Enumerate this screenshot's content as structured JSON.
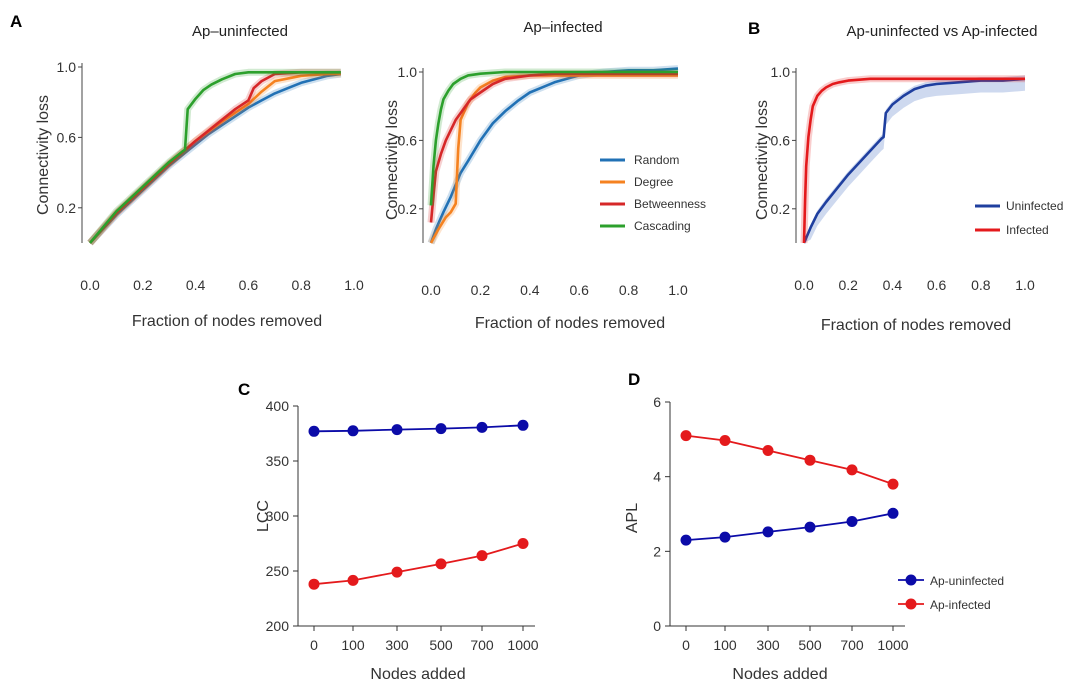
{
  "colors": {
    "random": "#2171b5",
    "degree": "#f58220",
    "betweenness": "#d62728",
    "cascading": "#2ca02c",
    "uninfected": "#1f3f9f",
    "infected": "#e41a1c",
    "band": "#c6d2ec",
    "navy": "#0b0ba8",
    "red": "#e41a1c"
  },
  "panel_labels": {
    "a": "A",
    "b": "B",
    "c": "C",
    "d": "D"
  },
  "chart_data": [
    {
      "id": "A1",
      "type": "line",
      "title": "Ap–uninfected",
      "xlabel": "Fraction of nodes removed",
      "ylabel": "Connectivity loss",
      "xlim": [
        0,
        1.0
      ],
      "ylim": [
        0,
        1.0
      ],
      "xticks": [
        "0.0",
        "0.2",
        "0.4",
        "0.6",
        "0.8",
        "1.0"
      ],
      "yticks": [
        "0.2",
        "0.6",
        "1.0"
      ],
      "series": [
        {
          "key": "random",
          "x": [
            0,
            0.05,
            0.1,
            0.15,
            0.2,
            0.25,
            0.3,
            0.35,
            0.4,
            0.45,
            0.5,
            0.55,
            0.6,
            0.65,
            0.7,
            0.75,
            0.8,
            0.85,
            0.9,
            0.95
          ],
          "y": [
            0,
            0.08,
            0.16,
            0.23,
            0.3,
            0.37,
            0.44,
            0.5,
            0.56,
            0.62,
            0.67,
            0.72,
            0.77,
            0.81,
            0.85,
            0.88,
            0.91,
            0.93,
            0.95,
            0.96
          ]
        },
        {
          "key": "degree",
          "x": [
            0,
            0.1,
            0.2,
            0.3,
            0.4,
            0.5,
            0.6,
            0.65,
            0.7,
            0.8,
            0.9,
            0.95
          ],
          "y": [
            0,
            0.17,
            0.31,
            0.45,
            0.58,
            0.69,
            0.79,
            0.86,
            0.92,
            0.95,
            0.96,
            0.96
          ]
        },
        {
          "key": "betweenness",
          "x": [
            0,
            0.1,
            0.2,
            0.3,
            0.4,
            0.5,
            0.55,
            0.6,
            0.62,
            0.65,
            0.7,
            0.8,
            0.9,
            0.95
          ],
          "y": [
            0,
            0.17,
            0.31,
            0.45,
            0.58,
            0.7,
            0.76,
            0.81,
            0.88,
            0.92,
            0.96,
            0.97,
            0.97,
            0.97
          ]
        },
        {
          "key": "cascading",
          "x": [
            0,
            0.1,
            0.2,
            0.3,
            0.35,
            0.36,
            0.37,
            0.4,
            0.43,
            0.46,
            0.5,
            0.55,
            0.6,
            0.7,
            0.8,
            0.95
          ],
          "y": [
            0,
            0.18,
            0.32,
            0.46,
            0.52,
            0.53,
            0.76,
            0.82,
            0.87,
            0.9,
            0.93,
            0.96,
            0.97,
            0.97,
            0.97,
            0.97
          ]
        }
      ]
    },
    {
      "id": "A2",
      "type": "line",
      "title": "Ap–infected",
      "xlabel": "Fraction of nodes removed",
      "ylabel": "Connectivity loss",
      "xlim": [
        0,
        1.0
      ],
      "ylim": [
        0,
        1.0
      ],
      "xticks": [
        "0.0",
        "0.2",
        "0.4",
        "0.6",
        "0.8",
        "1.0"
      ],
      "yticks": [
        "0.2",
        "0.6",
        "1.0"
      ],
      "legend": {
        "position": "right",
        "entries": [
          "Random",
          "Degree",
          "Betweenness",
          "Cascading"
        ]
      },
      "series": [
        {
          "key": "random",
          "name": "Random",
          "x": [
            0,
            0.02,
            0.05,
            0.08,
            0.1,
            0.12,
            0.15,
            0.2,
            0.25,
            0.3,
            0.35,
            0.4,
            0.45,
            0.5,
            0.55,
            0.6,
            0.7,
            0.8,
            0.9,
            1.0
          ],
          "y": [
            0,
            0.08,
            0.18,
            0.27,
            0.34,
            0.41,
            0.48,
            0.6,
            0.7,
            0.77,
            0.83,
            0.88,
            0.91,
            0.94,
            0.96,
            0.98,
            1.0,
            1.01,
            1.01,
            1.02
          ]
        },
        {
          "key": "degree",
          "name": "Degree",
          "x": [
            0,
            0.03,
            0.06,
            0.08,
            0.1,
            0.11,
            0.12,
            0.15,
            0.18,
            0.2,
            0.25,
            0.3,
            0.4,
            0.6,
            0.8,
            1.0
          ],
          "y": [
            0,
            0.08,
            0.15,
            0.18,
            0.23,
            0.55,
            0.72,
            0.82,
            0.88,
            0.91,
            0.95,
            0.97,
            0.98,
            0.98,
            0.98,
            0.98
          ]
        },
        {
          "key": "betweenness",
          "name": "Betweenness",
          "x": [
            0,
            0.01,
            0.02,
            0.04,
            0.06,
            0.08,
            0.1,
            0.13,
            0.16,
            0.2,
            0.25,
            0.3,
            0.4,
            0.5,
            0.7,
            1.0
          ],
          "y": [
            0.12,
            0.28,
            0.42,
            0.52,
            0.6,
            0.66,
            0.72,
            0.78,
            0.84,
            0.88,
            0.93,
            0.96,
            0.98,
            0.99,
            0.99,
            0.99
          ]
        },
        {
          "key": "cascading",
          "name": "Cascading",
          "x": [
            0,
            0.01,
            0.02,
            0.03,
            0.04,
            0.05,
            0.07,
            0.09,
            0.12,
            0.15,
            0.2,
            0.3,
            0.5,
            1.0
          ],
          "y": [
            0.22,
            0.45,
            0.6,
            0.7,
            0.78,
            0.84,
            0.89,
            0.93,
            0.96,
            0.98,
            0.99,
            1.0,
            1.0,
            1.0
          ]
        }
      ]
    },
    {
      "id": "B",
      "type": "line",
      "title": "Ap-uninfected vs Ap-infected",
      "xlabel": "Fraction of nodes removed",
      "ylabel": "Connectivity loss",
      "xlim": [
        0,
        1.0
      ],
      "ylim": [
        0,
        1.0
      ],
      "xticks": [
        "0.0",
        "0.2",
        "0.4",
        "0.6",
        "0.8",
        "1.0"
      ],
      "yticks": [
        "0.2",
        "0.6",
        "1.0"
      ],
      "legend": {
        "position": "bottom-right",
        "entries": [
          "Uninfected",
          "Infected"
        ]
      },
      "series": [
        {
          "key": "uninfected",
          "name": "Uninfected",
          "x": [
            0,
            0.03,
            0.06,
            0.1,
            0.15,
            0.2,
            0.25,
            0.3,
            0.35,
            0.36,
            0.37,
            0.4,
            0.45,
            0.5,
            0.55,
            0.6,
            0.7,
            0.8,
            0.9,
            1.0
          ],
          "y": [
            0,
            0.09,
            0.17,
            0.24,
            0.32,
            0.4,
            0.47,
            0.54,
            0.61,
            0.62,
            0.76,
            0.81,
            0.86,
            0.9,
            0.92,
            0.93,
            0.94,
            0.95,
            0.95,
            0.96
          ]
        },
        {
          "key": "infected",
          "name": "Infected",
          "x": [
            0,
            0.005,
            0.01,
            0.02,
            0.03,
            0.04,
            0.06,
            0.08,
            0.1,
            0.13,
            0.16,
            0.2,
            0.3,
            0.5,
            0.7,
            1.0
          ],
          "y": [
            0,
            0.25,
            0.45,
            0.62,
            0.72,
            0.8,
            0.86,
            0.89,
            0.91,
            0.93,
            0.94,
            0.95,
            0.96,
            0.96,
            0.96,
            0.96
          ]
        }
      ]
    },
    {
      "id": "C",
      "type": "line",
      "xlabel": "Nodes added",
      "ylabel": "LCC",
      "categories": [
        "0",
        "100",
        "300",
        "500",
        "700",
        "1000"
      ],
      "yticks": [
        "200",
        "250",
        "300",
        "350",
        "400"
      ],
      "ylim": [
        200,
        400
      ],
      "series": [
        {
          "key": "navy",
          "name": "Ap-uninfected",
          "values": [
            377,
            377.5,
            378.5,
            379.5,
            380.5,
            382.5
          ]
        },
        {
          "key": "red",
          "name": "Ap-infected",
          "values": [
            238,
            241.5,
            249,
            256.5,
            264,
            275
          ]
        }
      ]
    },
    {
      "id": "D",
      "type": "line",
      "xlabel": "Nodes added",
      "ylabel": "APL",
      "categories": [
        "0",
        "100",
        "300",
        "500",
        "700",
        "1000"
      ],
      "yticks": [
        "0",
        "2",
        "4",
        "6"
      ],
      "ylim": [
        0,
        6
      ],
      "legend": {
        "position": "bottom-right",
        "entries": [
          "Ap-uninfected",
          "Ap-infected"
        ]
      },
      "series": [
        {
          "key": "navy",
          "name": "Ap-uninfected",
          "values": [
            2.3,
            2.38,
            2.52,
            2.65,
            2.8,
            3.02
          ]
        },
        {
          "key": "red",
          "name": "Ap-infected",
          "values": [
            5.1,
            4.97,
            4.7,
            4.44,
            4.18,
            3.8
          ]
        }
      ]
    }
  ]
}
